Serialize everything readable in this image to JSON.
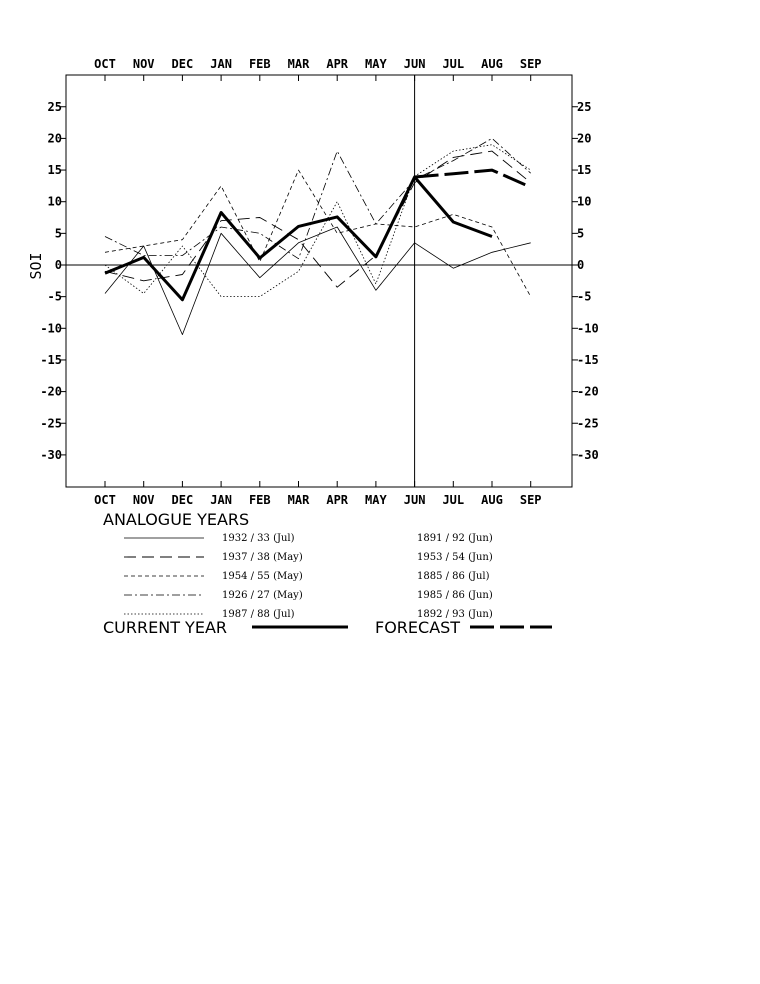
{
  "chart_data": {
    "type": "line",
    "categories": [
      "OCT",
      "NOV",
      "DEC",
      "JAN",
      "FEB",
      "MAR",
      "APR",
      "MAY",
      "JUN",
      "JUL",
      "AUG",
      "SEP"
    ],
    "xlabel": "",
    "ylabel": "SOI",
    "ylim": [
      -35,
      30
    ],
    "yticks": [
      25,
      20,
      15,
      10,
      5,
      0,
      -5,
      -10,
      -15,
      -20,
      -25,
      -30
    ],
    "zero_line": true,
    "current_month_marker": "JUN",
    "series": [
      {
        "legend_index": 0,
        "style": "thin-solid",
        "values": [
          -4.5,
          3,
          -11,
          5,
          -2,
          3.5,
          6,
          -4,
          3.5,
          -0.5,
          2,
          3.5
        ]
      },
      {
        "legend_index": 1,
        "style": "long-dash",
        "values": [
          -1,
          -2.5,
          -1.5,
          7,
          7.5,
          4,
          -3.5,
          1.5,
          13,
          17,
          18,
          13
        ]
      },
      {
        "legend_index": 2,
        "style": "short-dash",
        "values": [
          2,
          3,
          4,
          12.5,
          0.5,
          15,
          5,
          6.5,
          6,
          8,
          6,
          -5
        ]
      },
      {
        "legend_index": 3,
        "style": "dash-dot",
        "values": [
          4.5,
          1.5,
          1.5,
          6,
          5,
          1,
          18,
          6.5,
          13.5,
          16.5,
          20,
          14.5
        ]
      },
      {
        "legend_index": 4,
        "style": "dotted",
        "values": [
          0,
          -4.5,
          3,
          -5,
          -5,
          -1,
          10,
          -3,
          14,
          18,
          19,
          15
        ]
      }
    ],
    "current_year": [
      -1.3,
      1.2,
      -5.5,
      8.3,
      1.1,
      6.1,
      7.6,
      1.3,
      13.9,
      6.8,
      4.5,
      null
    ],
    "forecast": [
      null,
      null,
      null,
      null,
      null,
      null,
      null,
      null,
      13.9,
      14.4,
      15,
      12.3
    ],
    "legend": {
      "title": "ANALOGUE YEARS",
      "left_entries": [
        "1932 / 33 (Jul)",
        "1937 / 38 (May)",
        "1954 / 55 (May)",
        "1926 / 27 (May)",
        "1987 / 88 (Jul)"
      ],
      "right_entries": [
        "1891 / 92 (Jun)",
        "1953 / 54 (Jun)",
        "1885 / 86 (Jul)",
        "1985 / 86 (Jun)",
        "1892 / 93 (Jun)"
      ],
      "current_label": "CURRENT YEAR",
      "forecast_label": "FORECAST"
    }
  }
}
